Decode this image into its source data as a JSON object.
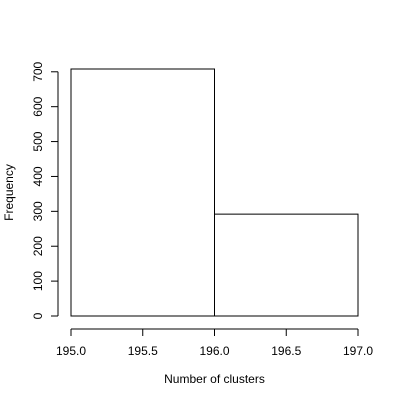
{
  "chart_data": {
    "type": "histogram",
    "title": "",
    "xlabel": "Number of clusters",
    "ylabel": "Frequency",
    "bins": [
      {
        "x0": 195.0,
        "x1": 196.0,
        "count": 708
      },
      {
        "x0": 196.0,
        "x1": 197.0,
        "count": 292
      }
    ],
    "xlim": [
      195.0,
      197.0
    ],
    "ylim": [
      0,
      708
    ],
    "x_ticks": [
      195.0,
      195.5,
      196.0,
      196.5,
      197.0
    ],
    "x_tick_labels": [
      "195.0",
      "195.5",
      "196.0",
      "196.5",
      "197.0"
    ],
    "y_ticks": [
      0,
      100,
      200,
      300,
      400,
      500,
      600,
      700
    ],
    "y_tick_labels": [
      "0",
      "100",
      "200",
      "300",
      "400",
      "500",
      "600",
      "700"
    ],
    "grid": false,
    "legend": "none",
    "bar_fill": "#ffffff",
    "bar_stroke": "#000000"
  }
}
